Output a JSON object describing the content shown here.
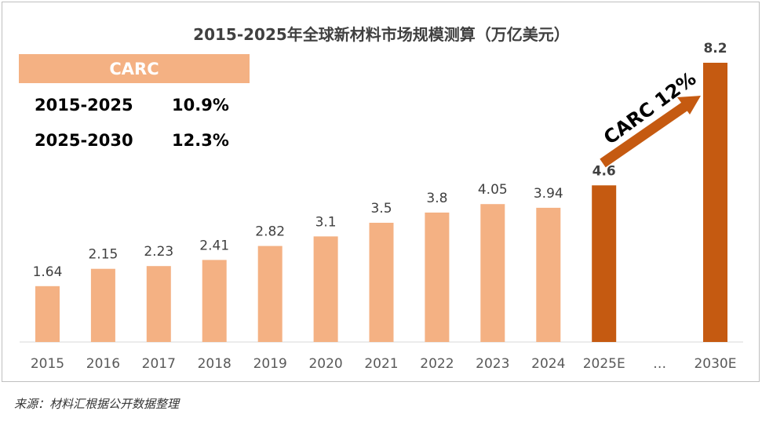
{
  "chart_data": {
    "type": "bar",
    "title": "2015-2025年全球新材料市场规模测算（万亿美元）",
    "categories": [
      "2015",
      "2016",
      "2017",
      "2018",
      "2019",
      "2020",
      "2021",
      "2022",
      "2023",
      "2024",
      "2025E",
      "…",
      "2030E"
    ],
    "values": [
      1.64,
      2.15,
      2.23,
      2.41,
      2.82,
      3.1,
      3.5,
      3.8,
      4.05,
      3.94,
      4.6,
      null,
      8.2
    ],
    "value_labels": [
      "1.64",
      "2.15",
      "2.23",
      "2.41",
      "2.82",
      "3.1",
      "3.5",
      "3.8",
      "4.05",
      "3.94",
      "4.6",
      "",
      "8.2"
    ],
    "highlight": [
      false,
      false,
      false,
      false,
      false,
      false,
      false,
      false,
      false,
      false,
      true,
      false,
      true
    ],
    "ylim": [
      0,
      8.2
    ],
    "colors": {
      "normal": "#f4b183",
      "highlight": "#c55a11",
      "arrow": "#c55a11",
      "table_header": "#f4b183"
    },
    "xlabel": "",
    "ylabel": ""
  },
  "carc_table": {
    "header": "CARC",
    "rows": [
      {
        "period": "2015-2025",
        "rate": "10.9%"
      },
      {
        "period": "2025-2030",
        "rate": "12.3%"
      }
    ]
  },
  "arrow_annotation": "CARC 12%",
  "source": "来源：材料汇根据公开数据整理"
}
